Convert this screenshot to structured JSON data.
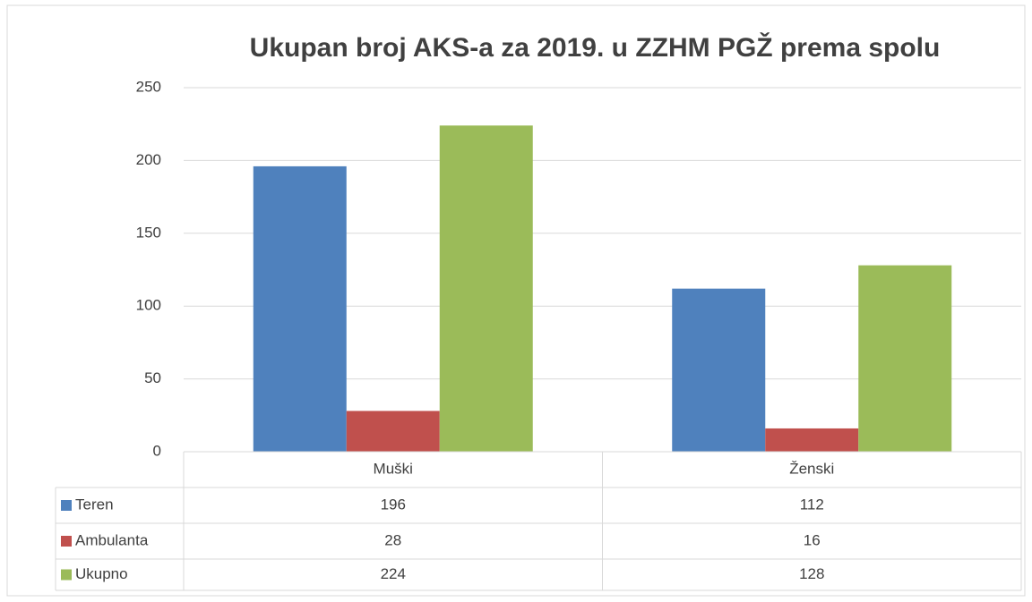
{
  "chart_data": {
    "type": "bar",
    "title": "Ukupan broj AKS-a za 2019. u ZZHM PGŽ prema spolu",
    "categories": [
      "Muški",
      "Ženski"
    ],
    "series": [
      {
        "name": "Teren",
        "color": "#4f81bd",
        "values": [
          196,
          112
        ]
      },
      {
        "name": "Ambulanta",
        "color": "#c0504d",
        "values": [
          28,
          16
        ]
      },
      {
        "name": "Ukupno",
        "color": "#9bbb59",
        "values": [
          224,
          128
        ]
      }
    ],
    "ylim": [
      0,
      250
    ],
    "yticks": [
      0,
      50,
      100,
      150,
      200,
      250
    ],
    "grid": true,
    "data_table": true
  }
}
